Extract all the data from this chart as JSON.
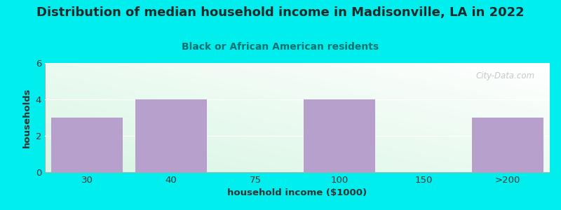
{
  "title": "Distribution of median household income in Madisonville, LA in 2022",
  "subtitle": "Black or African American residents",
  "xlabel": "household income ($1000)",
  "ylabel": "households",
  "categories": [
    "30",
    "40",
    "75",
    "100",
    "150",
    ">200"
  ],
  "values": [
    3,
    4,
    0,
    4,
    0,
    3
  ],
  "bar_color": "#b8a0cc",
  "background_color": "#00eeee",
  "plot_bg_color_top_left": "#c8e8c8",
  "plot_bg_color_bottom_right": "#ffffff",
  "title_color": "#1a2a2a",
  "subtitle_color": "#007070",
  "axis_label_color": "#333333",
  "tick_color": "#333333",
  "ylim": [
    0,
    6
  ],
  "yticks": [
    0,
    2,
    4,
    6
  ],
  "title_fontsize": 13,
  "subtitle_fontsize": 10,
  "label_fontsize": 9.5,
  "tick_fontsize": 9.5,
  "watermark": "City-Data.com",
  "watermark_color": "#bbbbbb"
}
